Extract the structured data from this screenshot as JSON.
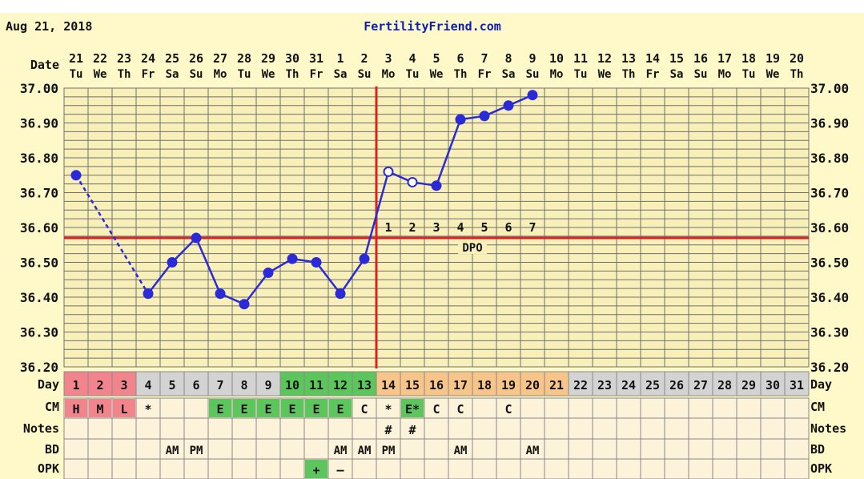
{
  "chart_data": {
    "type": "line",
    "date": "Aug 21, 2018",
    "site": "FertilityFriend.com",
    "row_labels": {
      "date": "Date",
      "day": "Day",
      "cm": "CM",
      "notes": "Notes",
      "bd": "BD",
      "opk": "OPK"
    },
    "dates": [
      "21",
      "22",
      "23",
      "24",
      "25",
      "26",
      "27",
      "28",
      "29",
      "30",
      "31",
      "1",
      "2",
      "3",
      "4",
      "5",
      "6",
      "7",
      "8",
      "9",
      "10",
      "11",
      "12",
      "13",
      "14",
      "15",
      "16",
      "17",
      "18",
      "19",
      "20"
    ],
    "weekdays": [
      "Tu",
      "We",
      "Th",
      "Fr",
      "Sa",
      "Su",
      "Mo",
      "Tu",
      "We",
      "Th",
      "Fr",
      "Sa",
      "Su",
      "Mo",
      "Tu",
      "We",
      "Th",
      "Fr",
      "Sa",
      "Su",
      "Mo",
      "Tu",
      "We",
      "Th",
      "Fr",
      "Sa",
      "Su",
      "Mo",
      "Tu",
      "We",
      "Th"
    ],
    "days": [
      "1",
      "2",
      "3",
      "4",
      "5",
      "6",
      "7",
      "8",
      "9",
      "10",
      "11",
      "12",
      "13",
      "14",
      "15",
      "16",
      "17",
      "18",
      "19",
      "20",
      "21",
      "22",
      "23",
      "24",
      "25",
      "26",
      "27",
      "28",
      "29",
      "30",
      "31"
    ],
    "y_ticks": [
      "36.20",
      "36.30",
      "36.40",
      "36.50",
      "36.60",
      "36.70",
      "36.80",
      "36.90",
      "37.00"
    ],
    "ylim": [
      36.2,
      37.0
    ],
    "temps": [
      {
        "day": 1,
        "value": 36.75,
        "filled": true
      },
      {
        "day": 4,
        "value": 36.41,
        "filled": true
      },
      {
        "day": 5,
        "value": 36.5,
        "filled": true
      },
      {
        "day": 6,
        "value": 36.57,
        "filled": true
      },
      {
        "day": 7,
        "value": 36.41,
        "filled": true
      },
      {
        "day": 8,
        "value": 36.38,
        "filled": true
      },
      {
        "day": 9,
        "value": 36.47,
        "filled": true
      },
      {
        "day": 10,
        "value": 36.51,
        "filled": true
      },
      {
        "day": 11,
        "value": 36.5,
        "filled": true
      },
      {
        "day": 12,
        "value": 36.41,
        "filled": true
      },
      {
        "day": 13,
        "value": 36.51,
        "filled": true
      },
      {
        "day": 14,
        "value": 36.76,
        "filled": false
      },
      {
        "day": 15,
        "value": 36.73,
        "filled": false
      },
      {
        "day": 16,
        "value": 36.72,
        "filled": true
      },
      {
        "day": 17,
        "value": 36.91,
        "filled": true
      },
      {
        "day": 18,
        "value": 36.92,
        "filled": true
      },
      {
        "day": 19,
        "value": 36.95,
        "filled": true
      },
      {
        "day": 20,
        "value": 36.98,
        "filled": true
      }
    ],
    "coverline": 36.57,
    "ovulation_day": 13,
    "dpo_labels": [
      {
        "day": 14,
        "text": "1"
      },
      {
        "day": 15,
        "text": "2"
      },
      {
        "day": 16,
        "text": "3"
      },
      {
        "day": 17,
        "text": "4"
      },
      {
        "day": 18,
        "text": "5"
      },
      {
        "day": 19,
        "text": "6"
      },
      {
        "day": 20,
        "text": "7"
      }
    ],
    "dpo_text": "DPO",
    "cm": [
      {
        "day": 1,
        "text": "H"
      },
      {
        "day": 2,
        "text": "M"
      },
      {
        "day": 3,
        "text": "L"
      },
      {
        "day": 4,
        "text": "*"
      },
      {
        "day": 7,
        "text": "E"
      },
      {
        "day": 8,
        "text": "E"
      },
      {
        "day": 9,
        "text": "E"
      },
      {
        "day": 10,
        "text": "E"
      },
      {
        "day": 11,
        "text": "E"
      },
      {
        "day": 12,
        "text": "E"
      },
      {
        "day": 13,
        "text": "C"
      },
      {
        "day": 14,
        "text": "*"
      },
      {
        "day": 15,
        "text": "E*"
      },
      {
        "day": 16,
        "text": "C"
      },
      {
        "day": 17,
        "text": "C"
      },
      {
        "day": 19,
        "text": "C"
      }
    ],
    "notes": [
      {
        "day": 14,
        "text": "#"
      },
      {
        "day": 15,
        "text": "#"
      }
    ],
    "bd": [
      {
        "day": 5,
        "text": "AM"
      },
      {
        "day": 6,
        "text": "PM"
      },
      {
        "day": 12,
        "text": "AM"
      },
      {
        "day": 13,
        "text": "AM"
      },
      {
        "day": 14,
        "text": "PM"
      },
      {
        "day": 17,
        "text": "AM"
      },
      {
        "day": 20,
        "text": "AM"
      }
    ],
    "opk": [
      {
        "day": 11,
        "text": "+"
      },
      {
        "day": 12,
        "text": "–"
      }
    ],
    "colors": {
      "plot_bg": "#f8f0b8",
      "grid": "#6f6f6f",
      "line": "#2a2ad8",
      "red": "#e02020",
      "menses": "#f1848c",
      "fertile": "#5cc65c",
      "fertile_light": "#88d07c",
      "luteal": "#f7c48a",
      "default_day": "#d3d3d3",
      "row_bg": "#fdf3da"
    }
  }
}
